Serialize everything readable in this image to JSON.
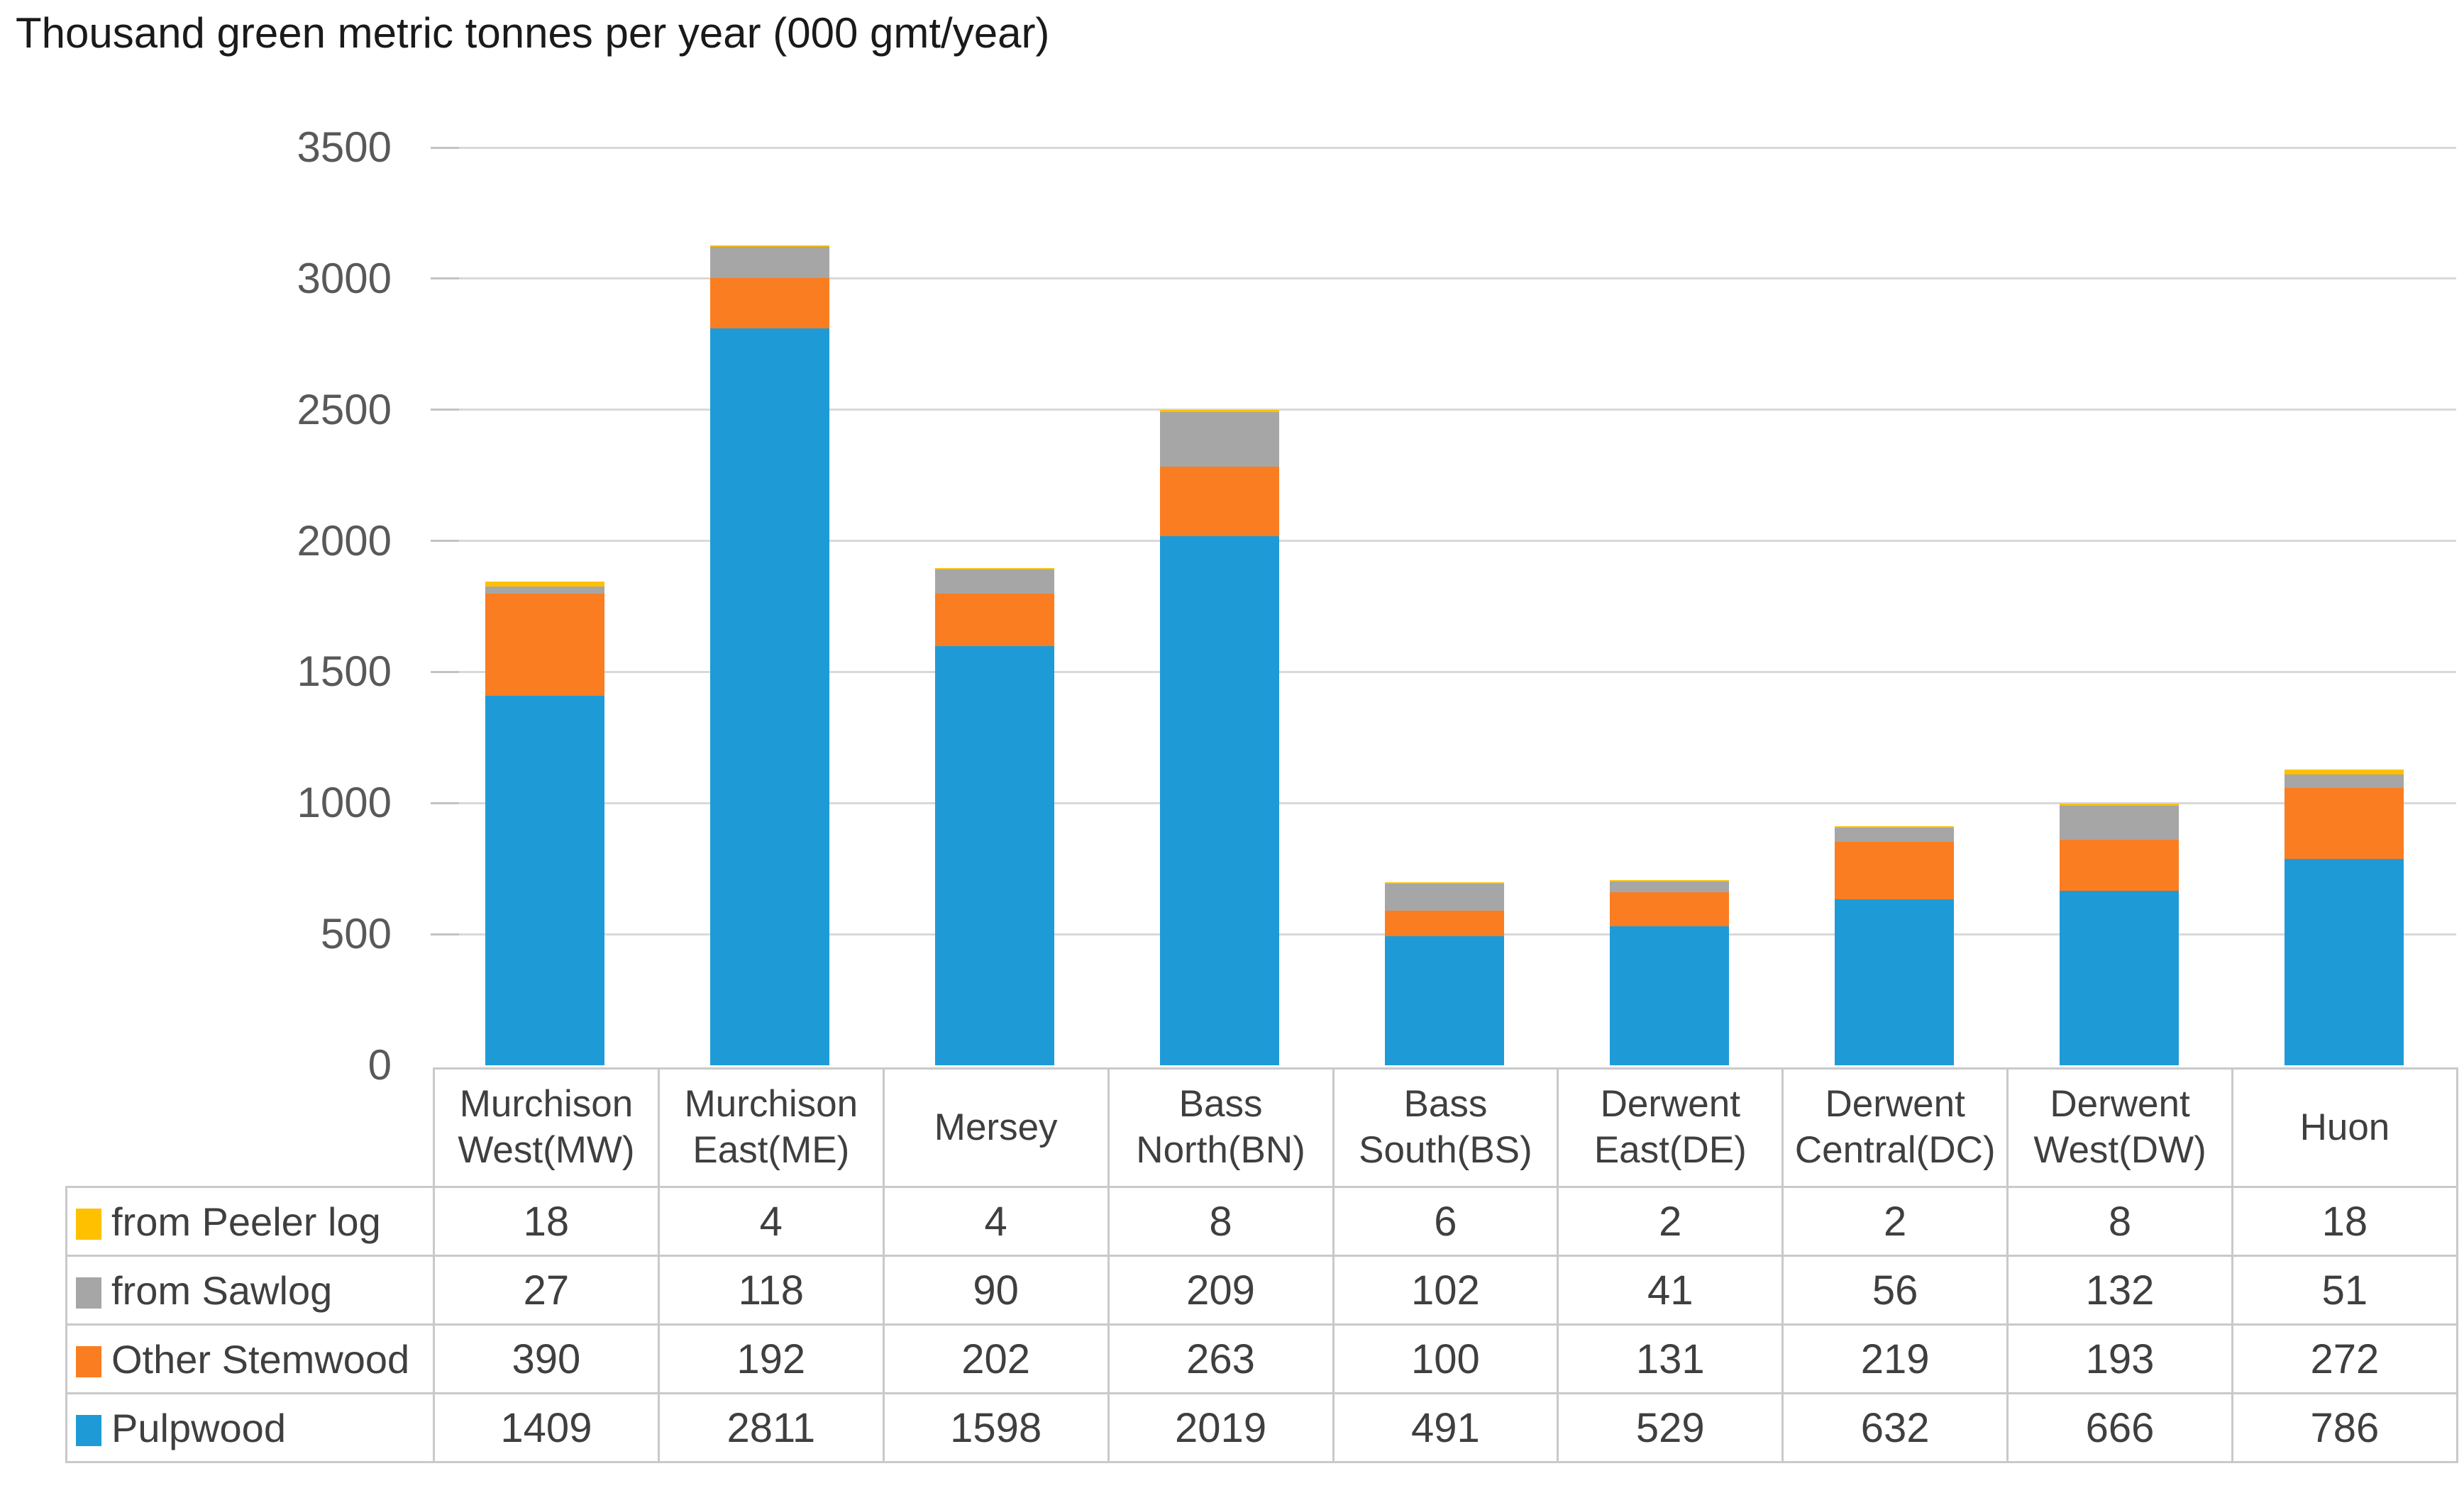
{
  "title": "Thousand green metric tonnes per year (000 gmt/year)",
  "colors": {
    "pulpwood_blue": "#1E9BD7",
    "other_stemwood_orange": "#FA7D21",
    "sawlog_gray": "#A6A6A6",
    "peeler_yellow": "#FFC000",
    "gridline": "#D9D9D9",
    "table_border": "#C9C9C9",
    "axis_text": "#595959",
    "table_text": "#3F3F3F",
    "title_text": "#1A1A1A"
  },
  "chart_data": {
    "type": "bar",
    "stacked": true,
    "title": "Thousand green metric tonnes per year (000 gmt/year)",
    "xlabel": "",
    "ylabel": "",
    "grid": true,
    "legend_position": "table-left",
    "categories": [
      "Murchison West(MW)",
      "Murchison East(ME)",
      "Mersey",
      "Bass North(BN)",
      "Bass South(BS)",
      "Derwent East(DE)",
      "Derwent Central(DC)",
      "Derwent West(DW)",
      "Huon"
    ],
    "series": [
      {
        "name": "from Peeler log",
        "color": "#FFC000",
        "values": [
          18,
          4,
          4,
          8,
          6,
          2,
          2,
          8,
          18
        ]
      },
      {
        "name": "from Sawlog",
        "color": "#A6A6A6",
        "values": [
          27,
          118,
          90,
          209,
          102,
          41,
          56,
          132,
          51
        ]
      },
      {
        "name": "Other Stemwood",
        "color": "#FA7D21",
        "values": [
          390,
          192,
          202,
          263,
          100,
          131,
          219,
          193,
          272
        ]
      },
      {
        "name": "Pulpwood",
        "color": "#1E9BD7",
        "values": [
          1409,
          2811,
          1598,
          2019,
          491,
          529,
          632,
          666,
          786
        ]
      }
    ],
    "stack_order_bottom_to_top": [
      "Pulpwood",
      "Other Stemwood",
      "from Sawlog",
      "from Peeler log"
    ],
    "y_axis": {
      "min": 0,
      "max": 3500,
      "step": 500,
      "ticks": [
        0,
        500,
        1000,
        1500,
        2000,
        2500,
        3000,
        3500
      ]
    }
  }
}
